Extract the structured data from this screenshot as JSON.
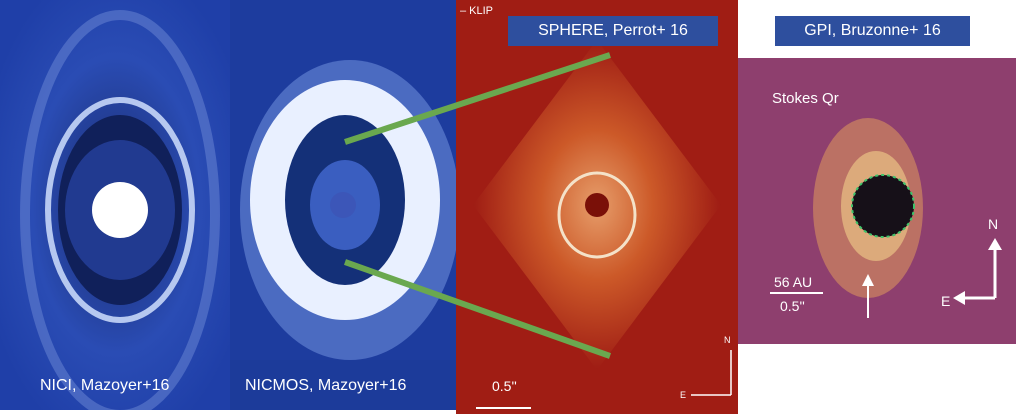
{
  "panels": {
    "nici": {
      "caption": "NICI, Mazoyer+16"
    },
    "nicmos": {
      "caption": "NICMOS, Mazoyer+16"
    },
    "sphere": {
      "label": "SPHERE, Perrot+ 16",
      "klip_text": "– KLIP",
      "scale_text": "0.5''",
      "north": "N",
      "east": "E"
    },
    "gpi": {
      "label": "GPI, Bruzonne+ 16",
      "stokes_text": "Stokes Qr",
      "scale_au": "56 AU",
      "scale_arcsec": "0.5''",
      "north": "N",
      "east": "E"
    }
  },
  "colors": {
    "label_box": "#2e4f9e",
    "connector": "#6aa84f",
    "nici_bg": "#1f3fa8",
    "sphere_bg": "#9e1c14",
    "gpi_bg": "#8c3f6e"
  }
}
